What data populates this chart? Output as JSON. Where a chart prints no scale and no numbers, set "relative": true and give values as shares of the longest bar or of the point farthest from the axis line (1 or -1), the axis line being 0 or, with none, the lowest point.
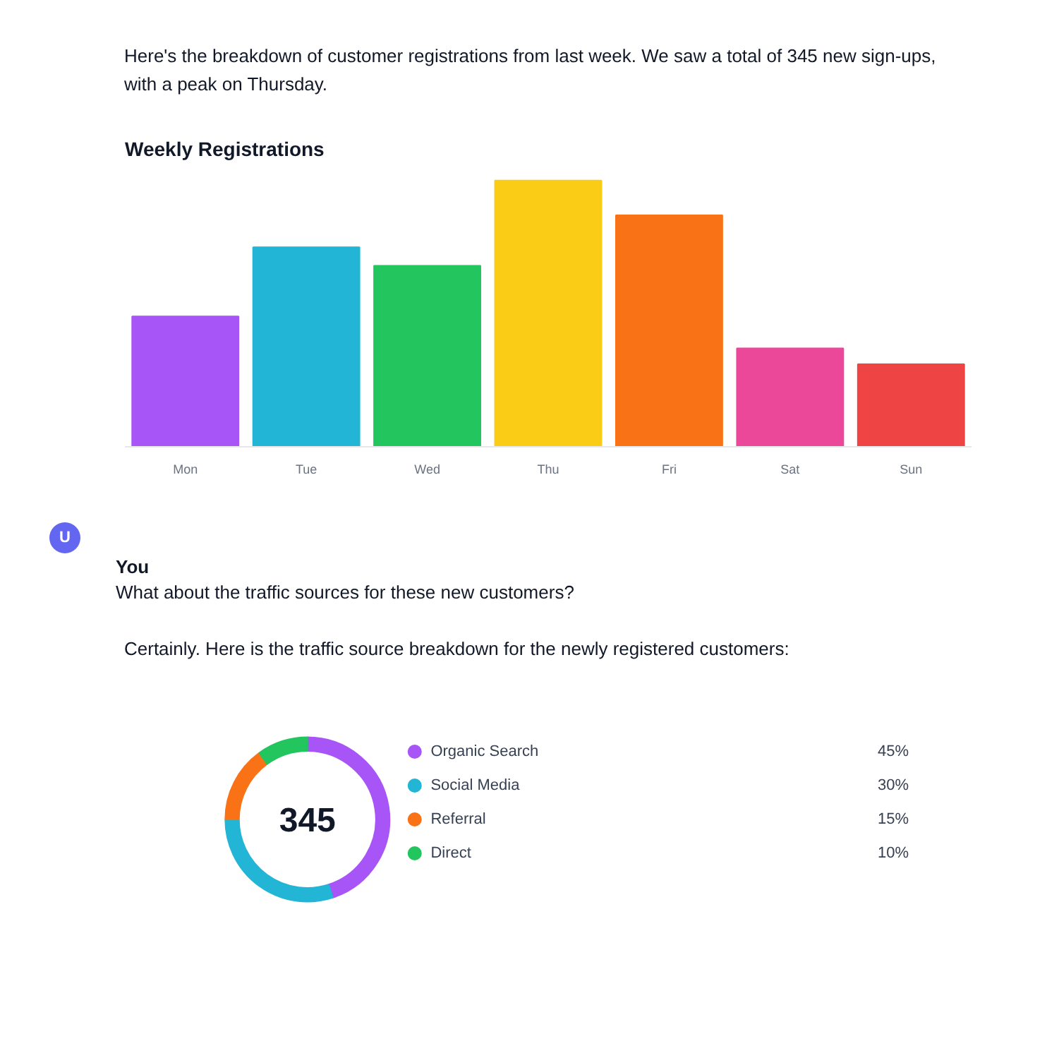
{
  "chart_data": [
    {
      "type": "bar",
      "title": "Weekly Registrations",
      "subtitle": "Here's the breakdown of customer registrations from last week. We saw a total of 345 new sign-ups, with a peak on Thursday.",
      "categories": [
        "Mon",
        "Tue",
        "Wed",
        "Thu",
        "Fri",
        "Sat",
        "Sun"
      ],
      "values": [
        0.49,
        0.75,
        0.68,
        1,
        0.87,
        0.37,
        0.31
      ],
      "colors": [
        "#a855f7",
        "#22b5d6",
        "#22c55e",
        "#facc15",
        "#f97316",
        "#ec4899",
        "#ef4444"
      ],
      "relative": true,
      "grid": false,
      "annotations": [
        "U",
        "You",
        "What about the traffic sources for these new customers?"
      ]
    },
    {
      "type": "donut",
      "subtitle": "Certainly. Here is the traffic source breakdown for the newly registered customers:",
      "categories": [
        "Organic Search",
        "Social Media",
        "Referral",
        "Direct"
      ],
      "values": [
        45,
        30,
        15,
        10
      ],
      "colors": [
        "#a855f7",
        "#22b5d6",
        "#f97316",
        "#22c55e"
      ],
      "value_labels": [
        "45%",
        "30%",
        "15%",
        "10%"
      ],
      "legend": "right",
      "annotations": [
        "345"
      ]
    }
  ]
}
